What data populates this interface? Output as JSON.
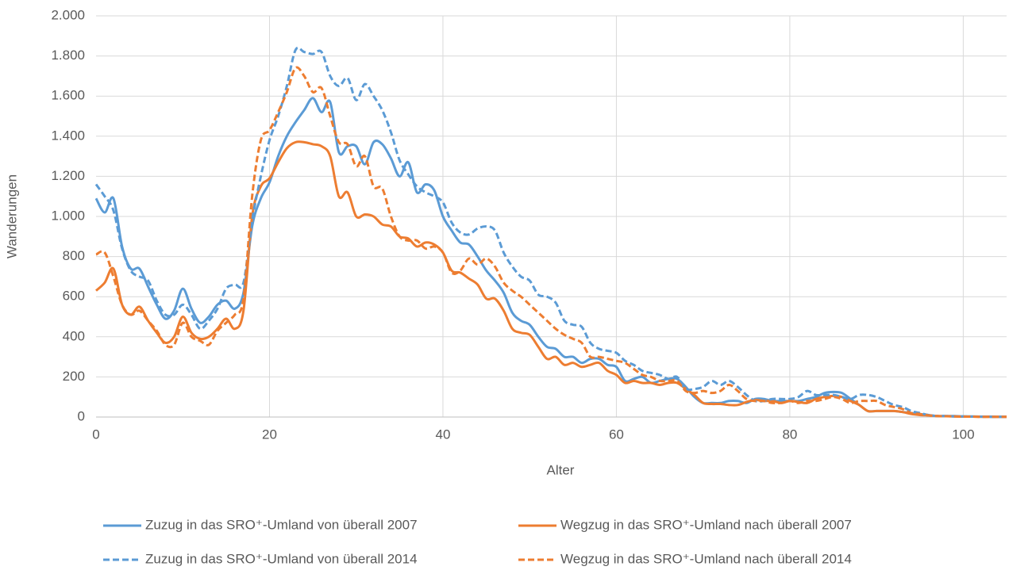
{
  "chart_data": {
    "type": "line",
    "x_label": "Alter",
    "y_label": "Wanderungen",
    "x": [
      0,
      1,
      2,
      3,
      4,
      5,
      6,
      7,
      8,
      9,
      10,
      11,
      12,
      13,
      14,
      15,
      16,
      17,
      18,
      19,
      20,
      21,
      22,
      23,
      24,
      25,
      26,
      27,
      28,
      29,
      30,
      31,
      32,
      33,
      34,
      35,
      36,
      37,
      38,
      39,
      40,
      41,
      42,
      43,
      44,
      45,
      46,
      47,
      48,
      49,
      50,
      51,
      52,
      53,
      54,
      55,
      56,
      57,
      58,
      59,
      60,
      61,
      62,
      63,
      64,
      65,
      66,
      67,
      68,
      69,
      70,
      71,
      72,
      73,
      74,
      75,
      76,
      77,
      78,
      79,
      80,
      81,
      82,
      83,
      84,
      85,
      86,
      87,
      88,
      89,
      90,
      91,
      92,
      93,
      94,
      95,
      96,
      97,
      98,
      99,
      100,
      101,
      102,
      103,
      104,
      105
    ],
    "xlim": [
      0,
      105
    ],
    "xticks": [
      0,
      20,
      40,
      60,
      80,
      100
    ],
    "ylim": [
      0,
      2000
    ],
    "yticks": [
      0,
      200,
      400,
      600,
      800,
      {
        "value": 1000,
        "label": "1.000"
      },
      {
        "value": 1200,
        "label": "1.200"
      },
      {
        "value": 1400,
        "label": "1.400"
      },
      {
        "value": 1600,
        "label": "1.600"
      },
      {
        "value": 1800,
        "label": "1.800"
      },
      {
        "value": 2000,
        "label": "2.000"
      }
    ],
    "grid": true,
    "series": [
      {
        "name": "Zuzug in das SRO⁺-Umland von überall 2007",
        "color": "#5b9bd5",
        "dashed": false,
        "values": [
          1090,
          1020,
          1090,
          850,
          740,
          740,
          650,
          560,
          490,
          530,
          640,
          540,
          470,
          500,
          560,
          580,
          540,
          620,
          950,
          1090,
          1170,
          1300,
          1400,
          1470,
          1530,
          1590,
          1520,
          1570,
          1320,
          1350,
          1350,
          1260,
          1370,
          1360,
          1290,
          1200,
          1270,
          1120,
          1160,
          1130,
          1000,
          930,
          870,
          860,
          800,
          730,
          680,
          620,
          520,
          480,
          460,
          400,
          350,
          340,
          300,
          300,
          270,
          290,
          290,
          260,
          250,
          180,
          190,
          200,
          170,
          180,
          190,
          190,
          150,
          100,
          70,
          70,
          70,
          80,
          80,
          70,
          90,
          90,
          80,
          80,
          80,
          80,
          90,
          100,
          120,
          125,
          120,
          90,
          60,
          30,
          30,
          30,
          30,
          25,
          20,
          15,
          10,
          5,
          5,
          5,
          3,
          3,
          2,
          2,
          1,
          1
        ]
      },
      {
        "name": "Wegzug in das SRO⁺-Umland nach überall 2007",
        "color": "#ed7d31",
        "dashed": false,
        "values": [
          630,
          670,
          740,
          560,
          510,
          550,
          480,
          420,
          370,
          400,
          500,
          420,
          390,
          400,
          440,
          490,
          440,
          530,
          1000,
          1150,
          1190,
          1270,
          1340,
          1370,
          1370,
          1360,
          1350,
          1300,
          1100,
          1120,
          1000,
          1010,
          1000,
          960,
          950,
          900,
          890,
          850,
          870,
          860,
          820,
          730,
          720,
          690,
          660,
          590,
          590,
          530,
          440,
          420,
          410,
          350,
          290,
          300,
          260,
          270,
          250,
          260,
          270,
          230,
          210,
          170,
          180,
          170,
          170,
          160,
          170,
          170,
          140,
          110,
          70,
          65,
          65,
          60,
          60,
          75,
          85,
          80,
          80,
          70,
          80,
          75,
          70,
          90,
          100,
          105,
          100,
          80,
          60,
          30,
          30,
          30,
          30,
          25,
          15,
          10,
          8,
          5,
          4,
          3,
          2,
          2,
          1,
          1,
          1,
          1
        ]
      },
      {
        "name": "Zuzug in das SRO⁺-Umland von überall 2014",
        "color": "#5b9bd5",
        "dashed": true,
        "values": [
          1160,
          1100,
          1030,
          840,
          730,
          700,
          680,
          580,
          510,
          510,
          560,
          510,
          440,
          480,
          540,
          640,
          660,
          670,
          980,
          1200,
          1380,
          1500,
          1650,
          1830,
          1820,
          1810,
          1820,
          1700,
          1650,
          1690,
          1580,
          1660,
          1600,
          1530,
          1420,
          1280,
          1210,
          1150,
          1120,
          1100,
          1070,
          970,
          920,
          910,
          940,
          950,
          930,
          820,
          750,
          700,
          680,
          610,
          600,
          570,
          480,
          460,
          450,
          370,
          340,
          330,
          320,
          280,
          260,
          230,
          220,
          210,
          190,
          200,
          140,
          140,
          150,
          180,
          160,
          180,
          150,
          110,
          80,
          80,
          90,
          90,
          90,
          100,
          130,
          110,
          110,
          110,
          100,
          90,
          110,
          110,
          100,
          80,
          60,
          50,
          30,
          20,
          10,
          5,
          5,
          3,
          3,
          2,
          2,
          1,
          1,
          1
        ]
      },
      {
        "name": "Wegzug in das SRO⁺-Umland nach überall 2014",
        "color": "#ed7d31",
        "dashed": true,
        "values": [
          810,
          820,
          700,
          560,
          510,
          530,
          480,
          430,
          360,
          360,
          470,
          400,
          380,
          360,
          430,
          470,
          510,
          590,
          1100,
          1380,
          1430,
          1520,
          1620,
          1740,
          1700,
          1620,
          1640,
          1500,
          1370,
          1360,
          1250,
          1300,
          1150,
          1140,
          1000,
          900,
          880,
          880,
          840,
          850,
          820,
          720,
          730,
          790,
          760,
          790,
          750,
          670,
          630,
          600,
          560,
          520,
          480,
          440,
          410,
          390,
          370,
          300,
          300,
          290,
          280,
          270,
          240,
          210,
          200,
          180,
          180,
          180,
          130,
          120,
          130,
          120,
          130,
          160,
          130,
          90,
          80,
          80,
          70,
          70,
          80,
          70,
          80,
          80,
          90,
          100,
          90,
          70,
          80,
          80,
          80,
          60,
          50,
          40,
          20,
          15,
          8,
          5,
          4,
          3,
          2,
          2,
          1,
          1,
          1,
          1
        ]
      }
    ]
  }
}
